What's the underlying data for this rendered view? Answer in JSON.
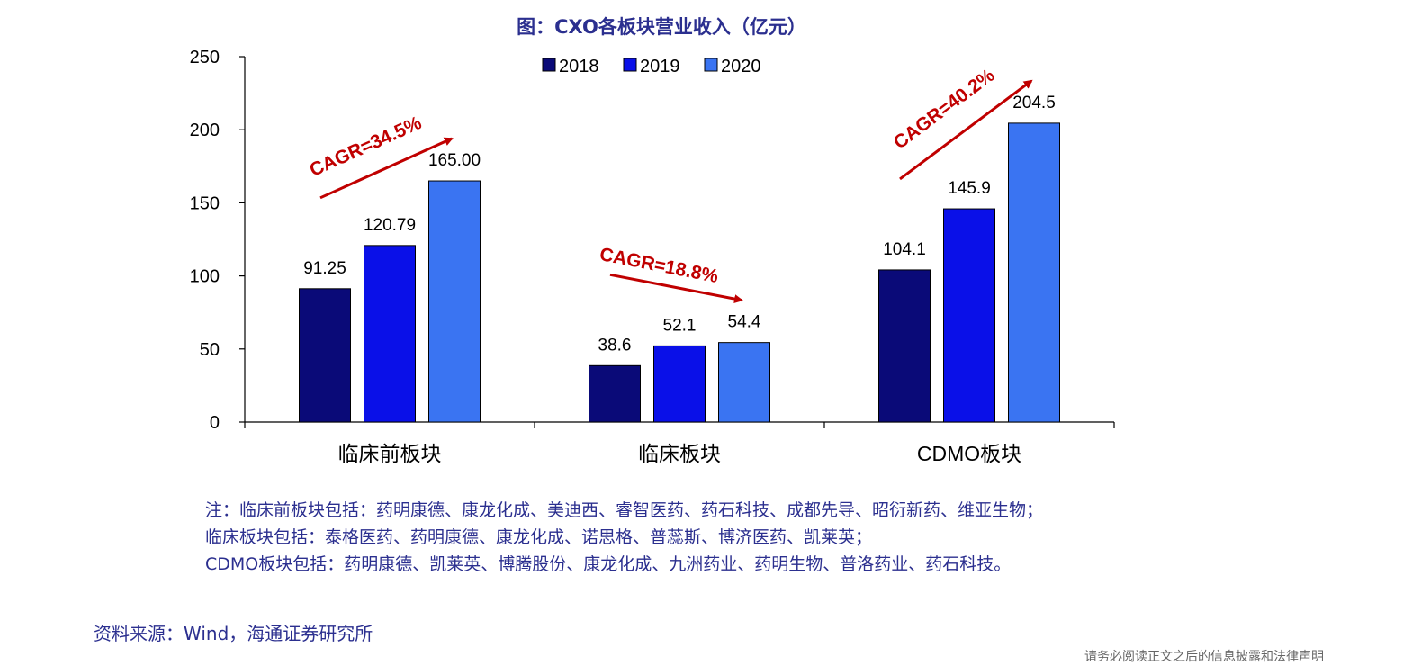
{
  "title": "图：CXO各板块营业收入（亿元）",
  "chart_data": {
    "type": "bar",
    "title": "图：CXO各板块营业收入（亿元）",
    "categories": [
      "临床前板块",
      "临床板块",
      "CDMO板块"
    ],
    "series": [
      {
        "name": "2018",
        "color": "#0a0a78",
        "values": [
          91.25,
          38.6,
          104.1
        ],
        "labels": [
          "91.25",
          "38.6",
          "104.1"
        ]
      },
      {
        "name": "2019",
        "color": "#0a10e8",
        "values": [
          120.79,
          52.1,
          145.9
        ],
        "labels": [
          "120.79",
          "52.1",
          "145.9"
        ]
      },
      {
        "name": "2020",
        "color": "#3a74f2",
        "values": [
          165.0,
          54.4,
          204.5
        ],
        "labels": [
          "165.00",
          "54.4",
          "204.5"
        ]
      }
    ],
    "ylim": [
      0,
      250
    ],
    "yticks": [
      0,
      50,
      100,
      150,
      200,
      250
    ],
    "legend_position": "top-center",
    "grid": false,
    "annotations": [
      {
        "text": "CAGR=34.5%",
        "category": "临床前板块",
        "color": "#c00000"
      },
      {
        "text": "CAGR=18.8%",
        "category": "临床板块",
        "color": "#c00000"
      },
      {
        "text": "CAGR=40.2%",
        "category": "CDMO板块",
        "color": "#c00000"
      }
    ]
  },
  "notes": [
    "注：临床前板块包括：药明康德、康龙化成、美迪西、睿智医药、药石科技、成都先导、昭衍新药、维亚生物；",
    "临床板块包括：泰格医药、药明康德、康龙化成、诺思格、普蕊斯、博济医药、凯莱英；",
    "CDMO板块包括：药明康德、凯莱英、博腾股份、康龙化成、九洲药业、药明生物、普洛药业、药石科技。"
  ],
  "source": "资料来源：Wind，海通证券研究所",
  "disclaimer": "请务必阅读正文之后的信息披露和法律声明"
}
